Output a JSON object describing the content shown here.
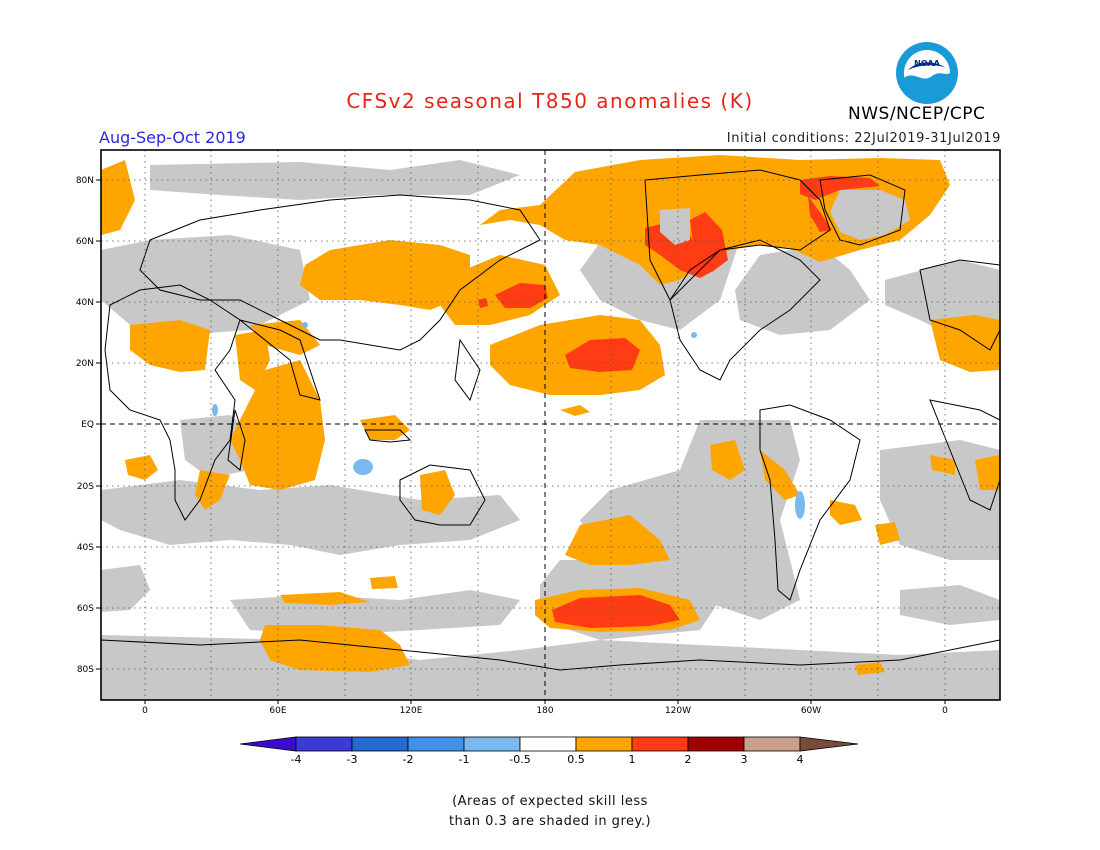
{
  "header": {
    "title": "CFSv2 seasonal T850 anomalies (K)",
    "agency": "NWS/NCEP/CPC",
    "logo_text": "NOAA",
    "season": "Aug-Sep-Oct 2019",
    "initial_conditions": "Initial conditions: 22Jul2019-31Jul2019"
  },
  "map": {
    "lat_labels": [
      "80N",
      "60N",
      "40N",
      "20N",
      "EQ",
      "20S",
      "40S",
      "60S",
      "80S"
    ],
    "lon_labels": [
      "0",
      "60E",
      "120E",
      "180",
      "120W",
      "60W",
      "0"
    ],
    "anomaly_colors": {
      "skill_grey": "#c8c8c8",
      "warm_0_5_to_1": "#ffa500",
      "warm_1_to_2": "#ff3c14",
      "neutral": "#ffffff",
      "cool_minus1_to_minus0_5": "#7ab8f0"
    }
  },
  "legend": {
    "labels": [
      "-4",
      "-3",
      "-2",
      "-1",
      "-0.5",
      "0.5",
      "1",
      "2",
      "3",
      "4"
    ],
    "colors": [
      "#3a0ccf",
      "#3a3ad4",
      "#2769d2",
      "#4191e6",
      "#7ab8f0",
      "#ffffff",
      "#ffa500",
      "#ff3c14",
      "#a00000",
      "#c8a08c",
      "#7a4a3a"
    ]
  },
  "footnote": {
    "line1": "(Areas of expected skill less",
    "line2": "than 0.3 are shaded in grey.)"
  }
}
